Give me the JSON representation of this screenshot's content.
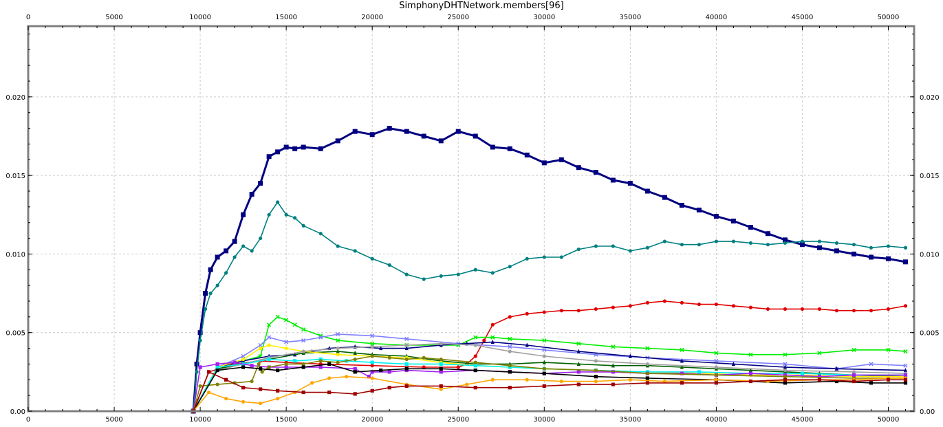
{
  "chart_data": {
    "type": "line",
    "title": "SimphonyDHTNetwork.members[96]",
    "xlabel": "",
    "ylabel": "",
    "xlim": [
      0,
      51500
    ],
    "ylim": [
      0,
      0.0245
    ],
    "grid": true,
    "xticks": [
      0,
      5000,
      10000,
      15000,
      20000,
      25000,
      30000,
      35000,
      40000,
      45000,
      50000
    ],
    "yticks": [
      0.0,
      0.005,
      0.01,
      0.015,
      0.02
    ],
    "x_tick_labels": [
      "0",
      "5000",
      "10000",
      "15000",
      "20000",
      "25000",
      "30000",
      "35000",
      "40000",
      "45000",
      "50000"
    ],
    "y_tick_labels": [
      "0.00",
      "0.005",
      "0.010",
      "0.015",
      "0.020"
    ],
    "series": [
      {
        "color": "#000080",
        "marker": "square",
        "x": [
          9600,
          9800,
          10000,
          10300,
          10600,
          11000,
          11500,
          12000,
          12500,
          13000,
          13500,
          14000,
          14500,
          15000,
          15500,
          16000,
          17000,
          18000,
          19000,
          20000,
          21000,
          22000,
          23000,
          24000,
          25000,
          26000,
          27000,
          28000,
          29000,
          30000,
          31000,
          32000,
          33000,
          34000,
          35000,
          36000,
          37000,
          38000,
          39000,
          40000,
          41000,
          42000,
          43000,
          44000,
          45000,
          46000,
          47000,
          48000,
          49000,
          50000,
          51000
        ],
        "y": [
          0.0,
          0.003,
          0.005,
          0.0075,
          0.009,
          0.0098,
          0.0102,
          0.0108,
          0.0125,
          0.0138,
          0.0145,
          0.0162,
          0.0165,
          0.0168,
          0.0167,
          0.0168,
          0.0167,
          0.0172,
          0.0178,
          0.0176,
          0.018,
          0.0178,
          0.0175,
          0.0172,
          0.0178,
          0.0175,
          0.0168,
          0.0167,
          0.0163,
          0.0158,
          0.016,
          0.0155,
          0.0152,
          0.0147,
          0.0145,
          0.014,
          0.0136,
          0.0131,
          0.0128,
          0.0124,
          0.0121,
          0.0117,
          0.0113,
          0.0109,
          0.0106,
          0.0104,
          0.0102,
          0.01,
          0.0098,
          0.0097,
          0.0095
        ]
      },
      {
        "color": "#008080",
        "marker": "circle",
        "x": [
          9600,
          9800,
          10000,
          10300,
          10600,
          11000,
          11500,
          12000,
          12500,
          13000,
          13500,
          14000,
          14500,
          15000,
          15500,
          16000,
          17000,
          18000,
          19000,
          20000,
          21000,
          22000,
          23000,
          24000,
          25000,
          26000,
          27000,
          28000,
          29000,
          30000,
          31000,
          32000,
          33000,
          34000,
          35000,
          36000,
          37000,
          38000,
          39000,
          40000,
          41000,
          42000,
          43000,
          44000,
          45000,
          46000,
          47000,
          48000,
          49000,
          50000,
          51000
        ],
        "y": [
          0.0,
          0.0025,
          0.0045,
          0.0065,
          0.0075,
          0.008,
          0.0088,
          0.0098,
          0.0105,
          0.0102,
          0.011,
          0.0125,
          0.0133,
          0.0125,
          0.0123,
          0.0118,
          0.0113,
          0.0105,
          0.0102,
          0.0097,
          0.0093,
          0.0087,
          0.0084,
          0.0086,
          0.0087,
          0.009,
          0.0088,
          0.0092,
          0.0097,
          0.0098,
          0.0098,
          0.0103,
          0.0105,
          0.0105,
          0.0102,
          0.0104,
          0.0108,
          0.0106,
          0.0106,
          0.0108,
          0.0108,
          0.0107,
          0.0106,
          0.0107,
          0.0108,
          0.0108,
          0.0107,
          0.0106,
          0.0104,
          0.0105,
          0.0104
        ]
      },
      {
        "color": "#e00000",
        "marker": "circle",
        "x": [
          9600,
          10500,
          12000,
          13500,
          15000,
          17000,
          20000,
          23000,
          25000,
          25500,
          26000,
          26500,
          27000,
          28000,
          29000,
          30000,
          31000,
          32000,
          33000,
          34000,
          35000,
          36000,
          37000,
          38000,
          39000,
          40000,
          41000,
          42000,
          43000,
          44000,
          45000,
          46000,
          47000,
          48000,
          49000,
          50000,
          51000
        ],
        "y": [
          0.0,
          0.0025,
          0.003,
          0.0032,
          0.0031,
          0.003,
          0.0029,
          0.0028,
          0.0028,
          0.003,
          0.0035,
          0.0045,
          0.0055,
          0.006,
          0.0062,
          0.0063,
          0.0064,
          0.0064,
          0.0065,
          0.0066,
          0.0067,
          0.0069,
          0.007,
          0.0069,
          0.0068,
          0.0068,
          0.0067,
          0.0066,
          0.0065,
          0.0065,
          0.0065,
          0.0065,
          0.0064,
          0.0064,
          0.0064,
          0.0065,
          0.0067
        ]
      },
      {
        "color": "#00ee00",
        "marker": "x",
        "x": [
          9600,
          11000,
          12500,
          13500,
          14000,
          14500,
          15000,
          15500,
          16000,
          17000,
          18000,
          20000,
          22000,
          25000,
          26000,
          27000,
          28000,
          30000,
          32000,
          34000,
          36000,
          38000,
          40000,
          42000,
          44000,
          46000,
          48000,
          50000,
          51000
        ],
        "y": [
          0.0,
          0.0028,
          0.0032,
          0.0035,
          0.0055,
          0.006,
          0.0058,
          0.0055,
          0.0052,
          0.0048,
          0.0045,
          0.0043,
          0.0042,
          0.0042,
          0.0047,
          0.0047,
          0.0046,
          0.0045,
          0.0043,
          0.0041,
          0.004,
          0.0039,
          0.0037,
          0.0036,
          0.0036,
          0.0037,
          0.0039,
          0.0039,
          0.0038
        ]
      },
      {
        "color": "#8080ff",
        "marker": "x",
        "x": [
          9600,
          11000,
          12500,
          13500,
          14000,
          15000,
          16000,
          17000,
          18000,
          20000,
          22000,
          25000,
          28000,
          30000,
          33000,
          36000,
          40000,
          44000,
          47000,
          49000,
          51000
        ],
        "y": [
          0.0,
          0.0028,
          0.0035,
          0.0042,
          0.0047,
          0.0044,
          0.0045,
          0.0047,
          0.0049,
          0.0048,
          0.0046,
          0.0043,
          0.0041,
          0.0039,
          0.0036,
          0.0034,
          0.0032,
          0.003,
          0.0027,
          0.003,
          0.0029
        ]
      },
      {
        "color": "#000080",
        "marker": "triangle",
        "x": [
          9600,
          11000,
          12500,
          14000,
          15500,
          16500,
          17500,
          19000,
          20500,
          22000,
          24000,
          25500,
          27000,
          29000,
          32000,
          35000,
          38000,
          41000,
          44000,
          47000,
          51000
        ],
        "y": [
          0.0,
          0.0028,
          0.0032,
          0.0035,
          0.0036,
          0.0038,
          0.004,
          0.0041,
          0.004,
          0.004,
          0.0042,
          0.0043,
          0.0044,
          0.0042,
          0.0038,
          0.0035,
          0.0032,
          0.003,
          0.0028,
          0.0027,
          0.0026
        ]
      },
      {
        "color": "#006000",
        "marker": "triangle",
        "x": [
          9600,
          11000,
          12500,
          14000,
          16000,
          18000,
          19000,
          20000,
          22000,
          24000,
          26000,
          28000,
          30000,
          32000,
          34000,
          36000,
          38000,
          40000,
          42000,
          44000,
          46000,
          48000,
          51000
        ],
        "y": [
          0.0,
          0.0027,
          0.003,
          0.0033,
          0.0037,
          0.0038,
          0.0037,
          0.0036,
          0.0035,
          0.0032,
          0.003,
          0.003,
          0.0031,
          0.003,
          0.0029,
          0.0029,
          0.0028,
          0.0027,
          0.0026,
          0.0025,
          0.0024,
          0.0023,
          0.0022
        ]
      },
      {
        "color": "#ffee00",
        "marker": "circle",
        "x": [
          9600,
          11000,
          12500,
          13500,
          14000,
          15000,
          16000,
          18000,
          20000,
          22000,
          24000,
          26000,
          28000,
          30000,
          33000,
          36000,
          39000,
          42000,
          45000,
          48000,
          51000
        ],
        "y": [
          0.0,
          0.0028,
          0.0033,
          0.004,
          0.0042,
          0.004,
          0.0038,
          0.0036,
          0.0035,
          0.0034,
          0.0031,
          0.0029,
          0.0028,
          0.0027,
          0.0026,
          0.0025,
          0.0024,
          0.0023,
          0.0023,
          0.0022,
          0.0022
        ]
      },
      {
        "color": "#a0a0a0",
        "marker": "circle",
        "x": [
          9600,
          11000,
          12500,
          14000,
          16000,
          18000,
          20000,
          22000,
          24000,
          26000,
          28000,
          30000,
          33000,
          36000,
          40000,
          44000,
          48000,
          51000
        ],
        "y": [
          0.0,
          0.0026,
          0.003,
          0.0034,
          0.0038,
          0.004,
          0.0041,
          0.0042,
          0.0043,
          0.0042,
          0.0038,
          0.0035,
          0.0032,
          0.003,
          0.0028,
          0.0026,
          0.0025,
          0.0024
        ]
      },
      {
        "color": "#00f0f0",
        "marker": "square",
        "x": [
          9600,
          11000,
          12500,
          14000,
          15500,
          17000,
          18500,
          20000,
          22000,
          24000,
          26000,
          28000,
          30000,
          33000,
          36000,
          39000,
          42000,
          45000,
          48000,
          51000
        ],
        "y": [
          0.0,
          0.0028,
          0.003,
          0.0033,
          0.0032,
          0.0033,
          0.0032,
          0.0031,
          0.003,
          0.003,
          0.0029,
          0.0028,
          0.0027,
          0.0026,
          0.0025,
          0.0025,
          0.0024,
          0.0024,
          0.0023,
          0.0023
        ]
      },
      {
        "color": "#a020f0",
        "marker": "square",
        "x": [
          9600,
          10000,
          11000,
          12000,
          13000,
          14000,
          15000,
          17000,
          19000,
          19800,
          20000,
          21000,
          22000,
          24000,
          26000,
          28000,
          30000,
          32000,
          34000,
          36000,
          38000,
          40000,
          42000,
          44000,
          46000,
          48000,
          51000
        ],
        "y": [
          0.0,
          0.0028,
          0.003,
          0.0031,
          0.0029,
          0.0028,
          0.0028,
          0.0028,
          0.0027,
          0.0022,
          0.0025,
          0.0025,
          0.0026,
          0.0025,
          0.0026,
          0.0025,
          0.0024,
          0.0025,
          0.0025,
          0.0024,
          0.0024,
          0.0023,
          0.0024,
          0.0023,
          0.0022,
          0.0023,
          0.0023
        ]
      },
      {
        "color": "#808000",
        "marker": "circle",
        "x": [
          9600,
          10000,
          11000,
          12000,
          13000,
          13400,
          13600,
          14000,
          15000,
          16000,
          17000,
          18000,
          19000,
          20000,
          21000,
          22000,
          23000,
          24000,
          26000,
          28000,
          30000,
          33000,
          36000,
          40000,
          44000,
          48000,
          51000
        ],
        "y": [
          0.0,
          0.0016,
          0.0017,
          0.0018,
          0.0019,
          0.003,
          0.0025,
          0.0028,
          0.003,
          0.003,
          0.0032,
          0.0031,
          0.0033,
          0.0035,
          0.0034,
          0.0033,
          0.0034,
          0.0033,
          0.0031,
          0.0029,
          0.0027,
          0.0026,
          0.0024,
          0.0023,
          0.0022,
          0.0021,
          0.0021
        ]
      },
      {
        "color": "#000000",
        "marker": "square",
        "x": [
          9600,
          11000,
          12500,
          13500,
          14500,
          16000,
          17500,
          19000,
          20500,
          22000,
          24000,
          26000,
          28000,
          30000,
          33000,
          36000,
          40000,
          44000,
          47000,
          49000,
          51000
        ],
        "y": [
          0.0,
          0.0026,
          0.0028,
          0.0027,
          0.0026,
          0.0028,
          0.003,
          0.0025,
          0.0026,
          0.0027,
          0.0027,
          0.0026,
          0.0025,
          0.0024,
          0.0022,
          0.0021,
          0.002,
          0.0018,
          0.0019,
          0.0018,
          0.0018
        ]
      },
      {
        "color": "#ffa500",
        "marker": "circle",
        "x": [
          9600,
          10500,
          11500,
          12500,
          13500,
          14500,
          15500,
          16500,
          17500,
          18500,
          20000,
          22000,
          24000,
          25500,
          27000,
          29000,
          31000,
          33000,
          35000,
          37000,
          40000,
          43000,
          46000,
          48000,
          50000,
          51000
        ],
        "y": [
          0.0,
          0.0012,
          0.0008,
          0.0006,
          0.0005,
          0.0008,
          0.0012,
          0.0018,
          0.0021,
          0.0022,
          0.0021,
          0.0017,
          0.0014,
          0.0017,
          0.002,
          0.002,
          0.0019,
          0.0019,
          0.002,
          0.0019,
          0.002,
          0.0019,
          0.002,
          0.002,
          0.0021,
          0.0021
        ]
      },
      {
        "color": "#a00000",
        "marker": "square",
        "x": [
          9600,
          10500,
          11500,
          12500,
          13500,
          14500,
          16000,
          17500,
          19000,
          20000,
          21000,
          22000,
          24000,
          26000,
          28000,
          30000,
          32000,
          34000,
          36000,
          38000,
          40000,
          42000,
          44000,
          46000,
          48000,
          50000,
          51000
        ],
        "y": [
          0.0,
          0.0025,
          0.002,
          0.0015,
          0.0014,
          0.0013,
          0.0012,
          0.0012,
          0.0011,
          0.0013,
          0.0015,
          0.0016,
          0.0016,
          0.0015,
          0.0015,
          0.0016,
          0.0017,
          0.0017,
          0.0018,
          0.0018,
          0.0018,
          0.0019,
          0.002,
          0.002,
          0.0019,
          0.002,
          0.002
        ]
      }
    ]
  }
}
